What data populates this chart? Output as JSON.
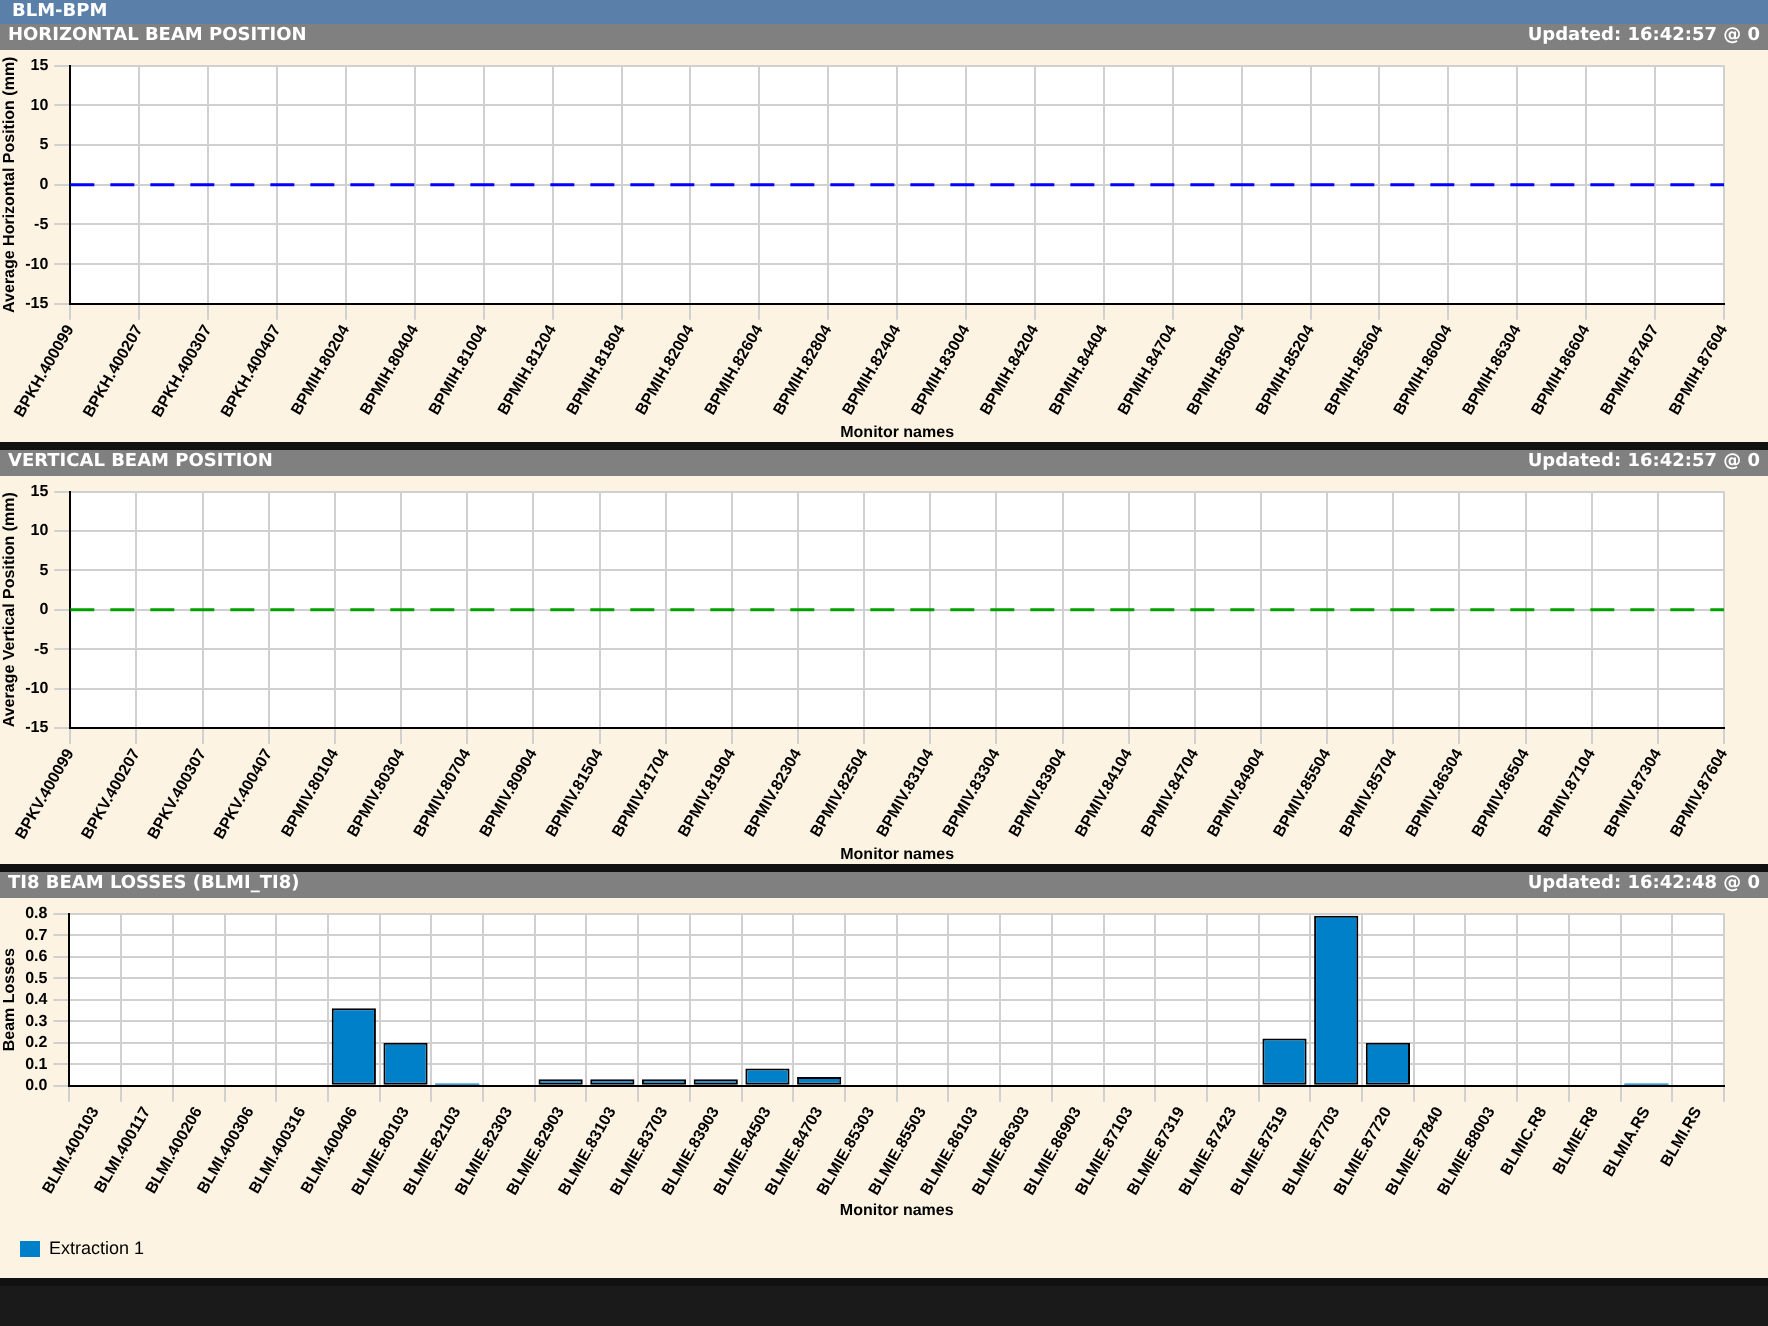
{
  "chart_data": [
    {
      "type": "line",
      "title": "HORIZONTAL BEAM POSITION",
      "annotations": [
        "BLM-BPM",
        "Updated: 16:42:57 @ 0"
      ],
      "xlabel": "Monitor names",
      "ylabel": "Average Horizontal Position (mm)",
      "categories": [
        "BPKH.400099",
        "BPKH.400207",
        "BPKH.400307",
        "BPKH.400407",
        "BPMIH.80204",
        "BPMIH.80404",
        "BPMIH.81004",
        "BPMIH.81204",
        "BPMIH.81804",
        "BPMIH.82004",
        "BPMIH.82604",
        "BPMIH.82804",
        "BPMIH.82404",
        "BPMIH.83004",
        "BPMIH.84204",
        "BPMIH.84404",
        "BPMIH.84704",
        "BPMIH.85004",
        "BPMIH.85204",
        "BPMIH.85604",
        "BPMIH.86004",
        "BPMIH.86304",
        "BPMIH.86604",
        "BPMIH.87407",
        "BPMIH.87604"
      ],
      "series": [
        {
          "color": "#0000ff",
          "values": [
            0,
            0,
            0,
            0,
            0,
            0,
            0,
            0,
            0,
            0,
            0,
            0,
            0,
            0,
            0,
            0,
            0,
            0,
            0,
            0,
            0,
            0,
            0,
            0,
            0
          ]
        }
      ],
      "ylim": [
        -15,
        15
      ],
      "yticks": [
        -15,
        -10,
        -5,
        0,
        5,
        10,
        15
      ],
      "grid": true,
      "legend": false,
      "marker": "none",
      "line_style": "dashed"
    },
    {
      "type": "line",
      "title": "VERTICAL BEAM POSITION",
      "annotations": [
        "Updated: 16:42:57 @ 0"
      ],
      "xlabel": "Monitor names",
      "ylabel": "Average Vertical Position (mm)",
      "categories": [
        "BPKV.400099",
        "BPKV.400207",
        "BPKV.400307",
        "BPKV.400407",
        "BPMIV.80104",
        "BPMIV.80304",
        "BPMIV.80704",
        "BPMIV.80904",
        "BPMIV.81504",
        "BPMIV.81704",
        "BPMIV.81904",
        "BPMIV.82304",
        "BPMIV.82504",
        "BPMIV.83104",
        "BPMIV.83304",
        "BPMIV.83904",
        "BPMIV.84104",
        "BPMIV.84704",
        "BPMIV.84904",
        "BPMIV.85504",
        "BPMIV.85704",
        "BPMIV.86304",
        "BPMIV.86504",
        "BPMIV.87104",
        "BPMIV.87304",
        "BPMIV.87604"
      ],
      "series": [
        {
          "color": "#00a000",
          "values": [
            0,
            0,
            0,
            0,
            0,
            0,
            0,
            0,
            0,
            0,
            0,
            0,
            0,
            0,
            0,
            0,
            0,
            0,
            0,
            0,
            0,
            0,
            0,
            0,
            0,
            0
          ]
        }
      ],
      "ylim": [
        -15,
        15
      ],
      "yticks": [
        -15,
        -10,
        -5,
        0,
        5,
        10,
        15
      ],
      "grid": true,
      "legend": false,
      "marker": "none",
      "line_style": "dashed"
    },
    {
      "type": "bar",
      "title": "TI8 BEAM LOSSES (BLMI_TI8)",
      "annotations": [
        "Updated: 16:42:48 @ 0"
      ],
      "xlabel": "Monitor names",
      "ylabel": "Beam Losses",
      "categories": [
        "BLMI.400103",
        "BLMI.400117",
        "BLMI.400206",
        "BLMI.400306",
        "BLMI.400316",
        "BLMI.400406",
        "BLMIE.80103",
        "BLMIE.82103",
        "BLMIE.82303",
        "BLMIE.82903",
        "BLMIE.83103",
        "BLMIE.83703",
        "BLMIE.83903",
        "BLMIE.84503",
        "BLMIE.84703",
        "BLMIE.85303",
        "BLMIE.85503",
        "BLMIE.86103",
        "BLMIE.86303",
        "BLMIE.86903",
        "BLMIE.87103",
        "BLMIE.87319",
        "BLMIE.87423",
        "BLMIE.87519",
        "BLMIE.87703",
        "BLMIE.87720",
        "BLMIE.87840",
        "BLMIE.88003",
        "BLMIC.R8",
        "BLMIE.R8",
        "BLMIA.RS",
        "BLMI.RS"
      ],
      "series": [
        {
          "name": "Extraction 1",
          "color": "#0080c8",
          "values": [
            0,
            0,
            0,
            0,
            0,
            0.36,
            0.2,
            0.01,
            0,
            0.03,
            0.03,
            0.03,
            0.03,
            0.08,
            0.04,
            0,
            0,
            0,
            0,
            0,
            0,
            0,
            0,
            0.22,
            0.79,
            0.2,
            0,
            0,
            0,
            0,
            0.01,
            0
          ]
        }
      ],
      "ylim": [
        0,
        0.8
      ],
      "yticks": [
        {
          "value": 0,
          "label": "0.0"
        },
        {
          "value": 0.1,
          "label": "0.1"
        },
        {
          "value": 0.2,
          "label": "0.2"
        },
        {
          "value": 0.3,
          "label": "0.3"
        },
        {
          "value": 0.4,
          "label": "0.4"
        },
        {
          "value": 0.5,
          "label": "0.5"
        },
        {
          "value": 0.6,
          "label": "0.6"
        },
        {
          "value": 0.7,
          "label": "0.7"
        },
        {
          "value": 0.8,
          "label": "0.8"
        }
      ],
      "grid": true,
      "legend": "bottom left"
    }
  ]
}
